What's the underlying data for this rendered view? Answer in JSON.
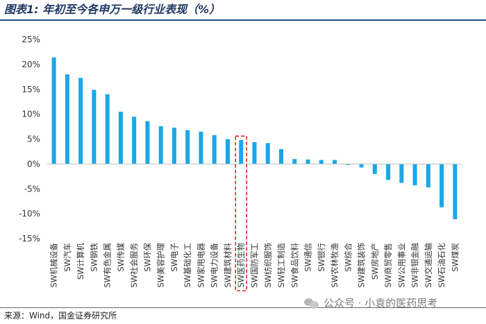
{
  "title": "图表1: 年初至今各申万一级行业表现（%）",
  "footer": {
    "source": "来源：Wind，国金证券研究所"
  },
  "watermark": {
    "text": "公众号 · 小袁的医药思考",
    "icon": "wechat-icon"
  },
  "colors": {
    "bar": "#1aa7e8",
    "highlight_box": "#e02020",
    "rule": "#1f4e8c",
    "title": "#1f3864"
  },
  "chart_data": {
    "type": "bar",
    "title": "",
    "xlabel": "",
    "ylabel": "",
    "ylim": [
      -15,
      25
    ],
    "yticks": [
      -15,
      -10,
      -5,
      0,
      5,
      10,
      15,
      20,
      25
    ],
    "ytick_labels": [
      "-15%",
      "-10%",
      "-5%",
      "0%",
      "5%",
      "10%",
      "15%",
      "20%",
      "25%"
    ],
    "grid": false,
    "highlight_category": "SW医药生物",
    "categories": [
      "SW机械设备",
      "SW汽车",
      "SW计算机",
      "SW钢铁",
      "SW有色金属",
      "SW传媒",
      "SW社会服务",
      "SW环保",
      "SW美容护理",
      "SW电子",
      "SW基础化工",
      "SW家用电器",
      "SW电力设备",
      "SW建筑材料",
      "SW医药生物",
      "SW国防军工",
      "SW纺织服饰",
      "SW轻工制造",
      "SW食品饮料",
      "SW通信",
      "SW银行",
      "SW农林牧渔",
      "SW综合",
      "SW建筑装饰",
      "SW房地产",
      "SW商贸零售",
      "SW公用事业",
      "SW非银金融",
      "SW交通运输",
      "SW石油石化",
      "SW煤炭"
    ],
    "values": [
      21.4,
      18.0,
      17.3,
      14.9,
      14.0,
      10.5,
      9.5,
      8.6,
      7.6,
      7.3,
      6.8,
      6.5,
      5.8,
      5.0,
      4.8,
      4.4,
      4.2,
      3.0,
      1.0,
      0.9,
      0.8,
      0.8,
      -0.2,
      -0.7,
      -2.0,
      -3.2,
      -3.8,
      -4.3,
      -4.7,
      -8.7,
      -11.1
    ]
  }
}
